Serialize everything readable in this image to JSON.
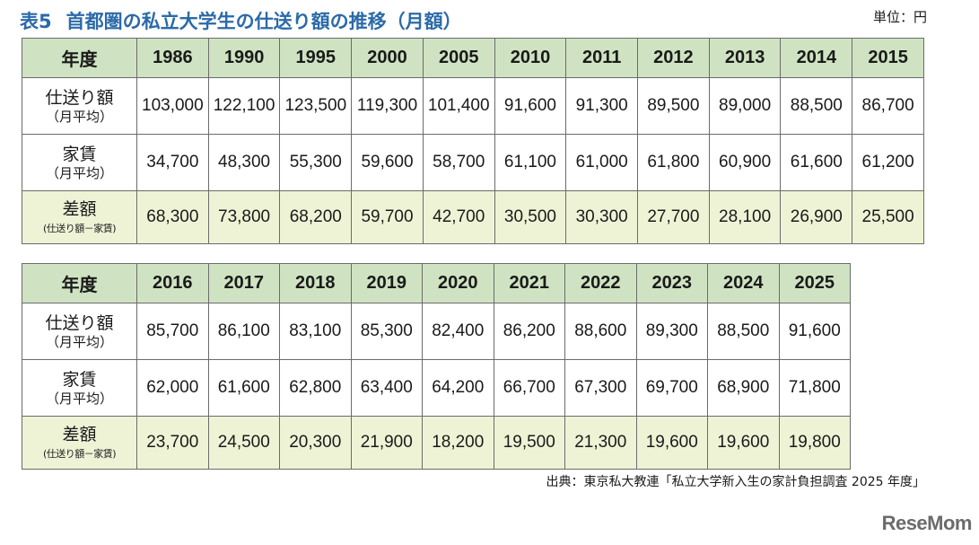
{
  "title": {
    "number": "表5",
    "text": "首都圏の私立大学生の仕送り額の推移（月額）"
  },
  "unit": "単位：円",
  "labels": {
    "year": "年度",
    "allowance": "仕送り額",
    "allowance_sub": "（月平均）",
    "rent": "家賃",
    "rent_sub": "（月平均）",
    "diff": "差額",
    "diff_sub": "(仕送り額－家賃)"
  },
  "table1": {
    "years": [
      "1986",
      "1990",
      "1995",
      "2000",
      "2005",
      "2010",
      "2011",
      "2012",
      "2013",
      "2014",
      "2015"
    ],
    "allowance": [
      "103,000",
      "122,100",
      "123,500",
      "119,300",
      "101,400",
      "91,600",
      "91,300",
      "89,500",
      "89,000",
      "88,500",
      "86,700"
    ],
    "rent": [
      "34,700",
      "48,300",
      "55,300",
      "59,600",
      "58,700",
      "61,100",
      "61,000",
      "61,800",
      "60,900",
      "61,600",
      "61,200"
    ],
    "diff": [
      "68,300",
      "73,800",
      "68,200",
      "59,700",
      "42,700",
      "30,500",
      "30,300",
      "27,700",
      "28,100",
      "26,900",
      "25,500"
    ]
  },
  "table2": {
    "years": [
      "2016",
      "2017",
      "2018",
      "2019",
      "2020",
      "2021",
      "2022",
      "2023",
      "2024",
      "2025"
    ],
    "allowance": [
      "85,700",
      "86,100",
      "83,100",
      "85,300",
      "82,400",
      "86,200",
      "88,600",
      "89,300",
      "88,500",
      "91,600"
    ],
    "rent": [
      "62,000",
      "61,600",
      "62,800",
      "63,400",
      "64,200",
      "66,700",
      "67,300",
      "69,700",
      "68,900",
      "71,800"
    ],
    "diff": [
      "23,700",
      "24,500",
      "20,300",
      "21,900",
      "18,200",
      "19,500",
      "21,300",
      "19,600",
      "19,600",
      "19,800"
    ]
  },
  "source": "出典：東京私大教連「私立大学新入生の家計負担調査 2025 年度」",
  "logo": "ReseMom",
  "colors": {
    "title": "#2b6aa8",
    "header_bg": "#cfe3c2",
    "diff_bg": "#eef3d6",
    "border": "#6b6b6b"
  }
}
